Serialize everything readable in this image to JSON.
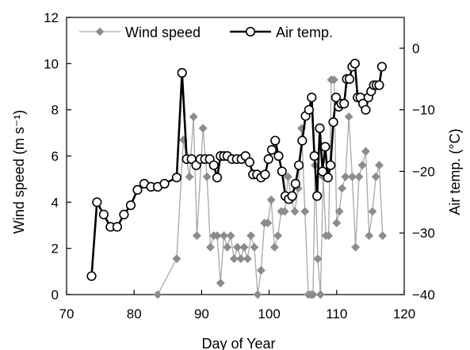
{
  "chart_data": {
    "type": "line",
    "title": "",
    "xlabel": "Day of Year",
    "ylabel": "Wind speed (m s⁻¹)",
    "ylabel_right": "Air temp. (°C)",
    "xlim": [
      70,
      120
    ],
    "ylim": [
      0,
      12
    ],
    "ylim_right": [
      -40,
      5
    ],
    "x_ticks": [
      70,
      80,
      90,
      100,
      110,
      120
    ],
    "y_ticks": [
      0,
      2,
      4,
      6,
      8,
      10,
      12
    ],
    "y_ticks_right": [
      -40,
      -30,
      -20,
      -10,
      0
    ],
    "grid": false,
    "legend_position": "top",
    "series": [
      {
        "name": "Wind speed",
        "axis": "left",
        "color": "#8c8c8c",
        "marker": "diamond",
        "x": [
          83.5,
          86.3,
          87.3,
          88.2,
          88.8,
          89.3,
          90.2,
          90.8,
          91.3,
          91.8,
          92.3,
          92.8,
          93.3,
          93.8,
          94.3,
          94.8,
          95.3,
          95.8,
          96.3,
          96.8,
          97.3,
          97.8,
          98.3,
          98.8,
          99.3,
          99.8,
          100.3,
          100.8,
          101.3,
          101.8,
          102.3,
          102.8,
          103.3,
          103.8,
          104.3,
          104.8,
          105.3,
          105.8,
          106.2,
          106.5,
          106.8,
          107.2,
          107.6,
          108.0,
          108.4,
          108.8,
          109.2,
          109.6,
          110.0,
          110.4,
          110.8,
          111.3,
          111.8,
          112.3,
          112.8,
          113.3,
          113.8,
          114.3,
          114.8,
          115.3,
          115.8,
          116.3,
          116.8
        ],
        "y": [
          0.0,
          1.55,
          6.7,
          5.1,
          7.7,
          2.55,
          7.2,
          5.1,
          2.05,
          2.55,
          2.55,
          0.5,
          2.55,
          2.05,
          2.55,
          1.55,
          2.05,
          1.55,
          2.05,
          1.55,
          2.55,
          2.05,
          0.0,
          1.05,
          3.1,
          3.1,
          4.1,
          2.05,
          2.55,
          3.6,
          3.6,
          5.1,
          4.1,
          3.6,
          4.6,
          7.2,
          3.6,
          0.0,
          0.0,
          0.0,
          5.6,
          1.55,
          0.0,
          5.1,
          2.55,
          2.55,
          9.3,
          9.3,
          3.1,
          3.6,
          4.6,
          5.1,
          7.7,
          5.1,
          2.05,
          5.1,
          5.6,
          6.2,
          2.55,
          3.6,
          5.1,
          5.6,
          2.55
        ]
      },
      {
        "name": "Air temp.",
        "axis": "right",
        "color": "#000000",
        "marker": "circle",
        "x": [
          73.7,
          74.5,
          75.5,
          76.5,
          77.5,
          78.5,
          79.5,
          80.5,
          81.5,
          82.5,
          83.5,
          84.5,
          86.3,
          87.1,
          87.8,
          88.5,
          89.2,
          89.8,
          90.5,
          91.2,
          91.8,
          92.3,
          92.8,
          93.3,
          93.8,
          94.5,
          95.2,
          95.9,
          96.5,
          97.1,
          97.6,
          98.2,
          98.8,
          99.4,
          99.9,
          100.4,
          100.9,
          101.4,
          101.9,
          102.4,
          102.9,
          103.4,
          103.9,
          104.4,
          104.9,
          105.4,
          105.9,
          106.3,
          106.7,
          107.1,
          107.5,
          107.9,
          108.3,
          108.7,
          109.1,
          109.5,
          109.9,
          110.3,
          110.7,
          111.1,
          111.5,
          111.9,
          112.3,
          112.7,
          113.1,
          113.5,
          113.9,
          114.3,
          114.7,
          115.1,
          115.5,
          115.9,
          116.3,
          116.7
        ],
        "y": [
          -37,
          -25,
          -27,
          -29,
          -29,
          -27,
          -25.5,
          -23,
          -22,
          -22.5,
          -22.5,
          -22,
          -21,
          -4,
          -18,
          -18,
          -19,
          -18,
          -18,
          -18,
          -19,
          -21,
          -17.5,
          -17.5,
          -17.5,
          -18,
          -18,
          -18,
          -17.5,
          -18.5,
          -20.5,
          -20.5,
          -21,
          -20.5,
          -18,
          -16.5,
          -15,
          -17.5,
          -20,
          -24,
          -24.5,
          -24,
          -22,
          -19,
          -15,
          -11,
          -10,
          -8,
          -17.5,
          -24,
          -13,
          -20,
          -16,
          -21,
          -19,
          -12,
          -8,
          -9.5,
          -9,
          -9,
          -5,
          -5,
          -3,
          -2.5,
          -8,
          -8,
          -9,
          -10,
          -8,
          -7,
          -6,
          -6,
          -6,
          -3
        ]
      }
    ]
  }
}
